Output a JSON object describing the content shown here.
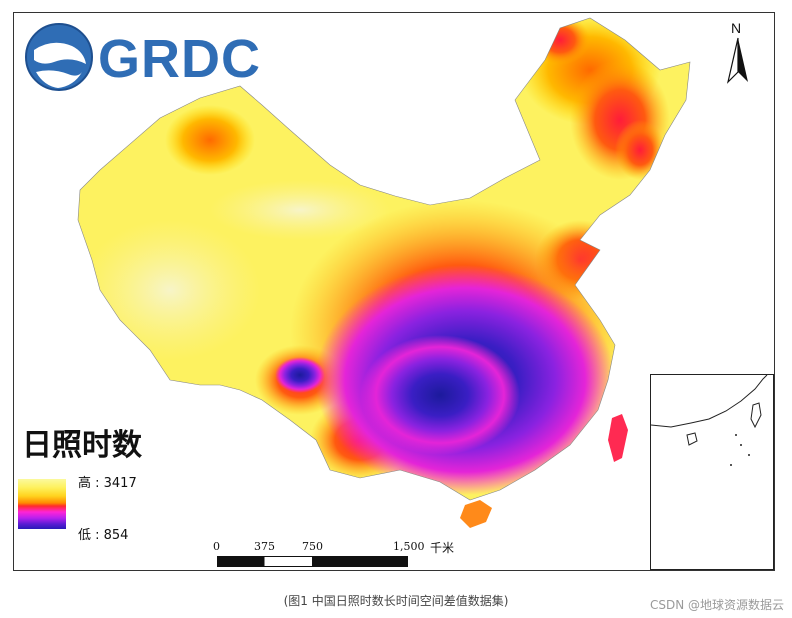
{
  "logo": {
    "text": "GRDC"
  },
  "legend": {
    "title": "日照时数",
    "high_label": "高 : 3417",
    "low_label": "低 : 854",
    "high_value": 3417,
    "low_value": 854,
    "colors": [
      "#fbfa9e",
      "#fef05a",
      "#ffd31e",
      "#ff8a00",
      "#ff2b2b",
      "#ff24d6",
      "#b820ee",
      "#5a1cd4",
      "#2a1ab7"
    ]
  },
  "north_arrow": {
    "label": "N"
  },
  "scale_bar": {
    "ticks": [
      "0",
      "375",
      "750",
      "1,500"
    ],
    "unit": "千米"
  },
  "caption": "(图1 中国日照时数长时间空间差值数据集)",
  "watermark": "CSDN @地球资源数据云"
}
